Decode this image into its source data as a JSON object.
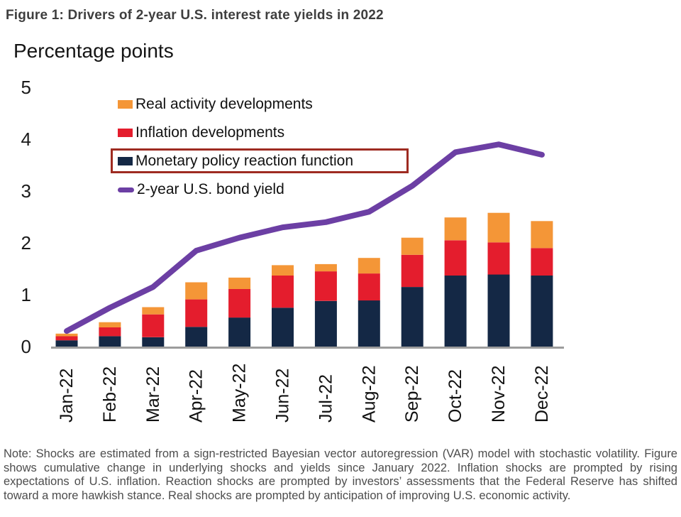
{
  "figure": {
    "title": "Figure 1: Drivers of 2-year U.S. interest rate yields in 2022",
    "note": "Note: Shocks are estimated from a sign-restricted Bayesian vector autoregression (VAR) model with stochastic volatility. Figure shows cumulative change in underlying shocks and yields since January 2022. Inflation shocks are prompted by rising expectations of U.S. inflation. Reaction shocks are prompted by investors’ assessments that the Federal Reserve has shifted toward a more hawkish stance. Real shocks are prompted by anticipation of improving U.S. economic activity."
  },
  "chart_data": {
    "type": "stacked-bar+line",
    "title": "Figure 1: Drivers of 2-year U.S. interest rate yields in 2022",
    "ylabel": "Percentage points",
    "xlabel": "",
    "ylim": [
      0,
      5
    ],
    "yticks": [
      0,
      1,
      2,
      3,
      4,
      5
    ],
    "grid": false,
    "legend_position": "top-left-inside",
    "categories": [
      "Jan-22",
      "Feb-22",
      "Mar-22",
      "Apr-22",
      "May-22",
      "Jun-22",
      "Jul-22",
      "Aug-22",
      "Sep-22",
      "Oct-22",
      "Nov-22",
      "Dec-22"
    ],
    "bar_series": [
      {
        "name": "Monetary policy reaction function",
        "color": "#142845",
        "values": [
          0.12,
          0.2,
          0.18,
          0.38,
          0.56,
          0.75,
          0.88,
          0.89,
          1.15,
          1.37,
          1.39,
          1.37
        ]
      },
      {
        "name": "Inflation developments",
        "color": "#e41d2d",
        "values": [
          0.08,
          0.17,
          0.44,
          0.53,
          0.55,
          0.62,
          0.57,
          0.52,
          0.62,
          0.68,
          0.62,
          0.53
        ]
      },
      {
        "name": "Real activity developments",
        "color": "#f49637",
        "values": [
          0.05,
          0.1,
          0.14,
          0.33,
          0.22,
          0.2,
          0.14,
          0.3,
          0.33,
          0.44,
          0.57,
          0.52
        ]
      }
    ],
    "line_series": {
      "name": "2-year U.S. bond yield",
      "color": "#6c3fa4",
      "values": [
        0.3,
        0.75,
        1.15,
        1.85,
        2.1,
        2.3,
        2.4,
        2.6,
        3.1,
        3.75,
        3.9,
        3.7
      ]
    },
    "legend_highlight": {
      "item": "Monetary policy reaction function",
      "box_color": "#9e2b21"
    },
    "axis_color": "#9c9c9c",
    "tick_label_color": "#1a1a1a"
  }
}
